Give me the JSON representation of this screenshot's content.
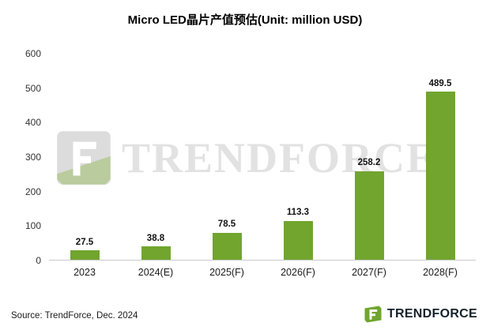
{
  "title": "Micro LED晶片产值预估(Unit: million USD)",
  "source": "Source: TrendForce, Dec. 2024",
  "watermark_text": "TRENDFORCE",
  "logo": {
    "text": "TRENDFORCE"
  },
  "colors": {
    "bar": "#71a52e",
    "axis_text": "#333333",
    "watermark": "#e2e2e2",
    "logo_green": "#71a52e",
    "logo_dark": "#14212b"
  },
  "chart_data": {
    "type": "bar",
    "title": "Micro LED晶片产值预估(Unit: million USD)",
    "unit": "million USD",
    "categories": [
      "2023",
      "2024(E)",
      "2025(F)",
      "2026(F)",
      "2027(F)",
      "2028(F)"
    ],
    "values": [
      27.5,
      38.8,
      78.5,
      113.3,
      258.2,
      489.5
    ],
    "value_labels": [
      "27.5",
      "38.8",
      "78.5",
      "113.3",
      "258.2",
      "489.5"
    ],
    "xlabel": "",
    "ylabel": "",
    "ylim": [
      0,
      600
    ],
    "yticks": [
      0,
      100,
      200,
      300,
      400,
      500,
      600
    ],
    "grid": false,
    "legend": "none"
  }
}
